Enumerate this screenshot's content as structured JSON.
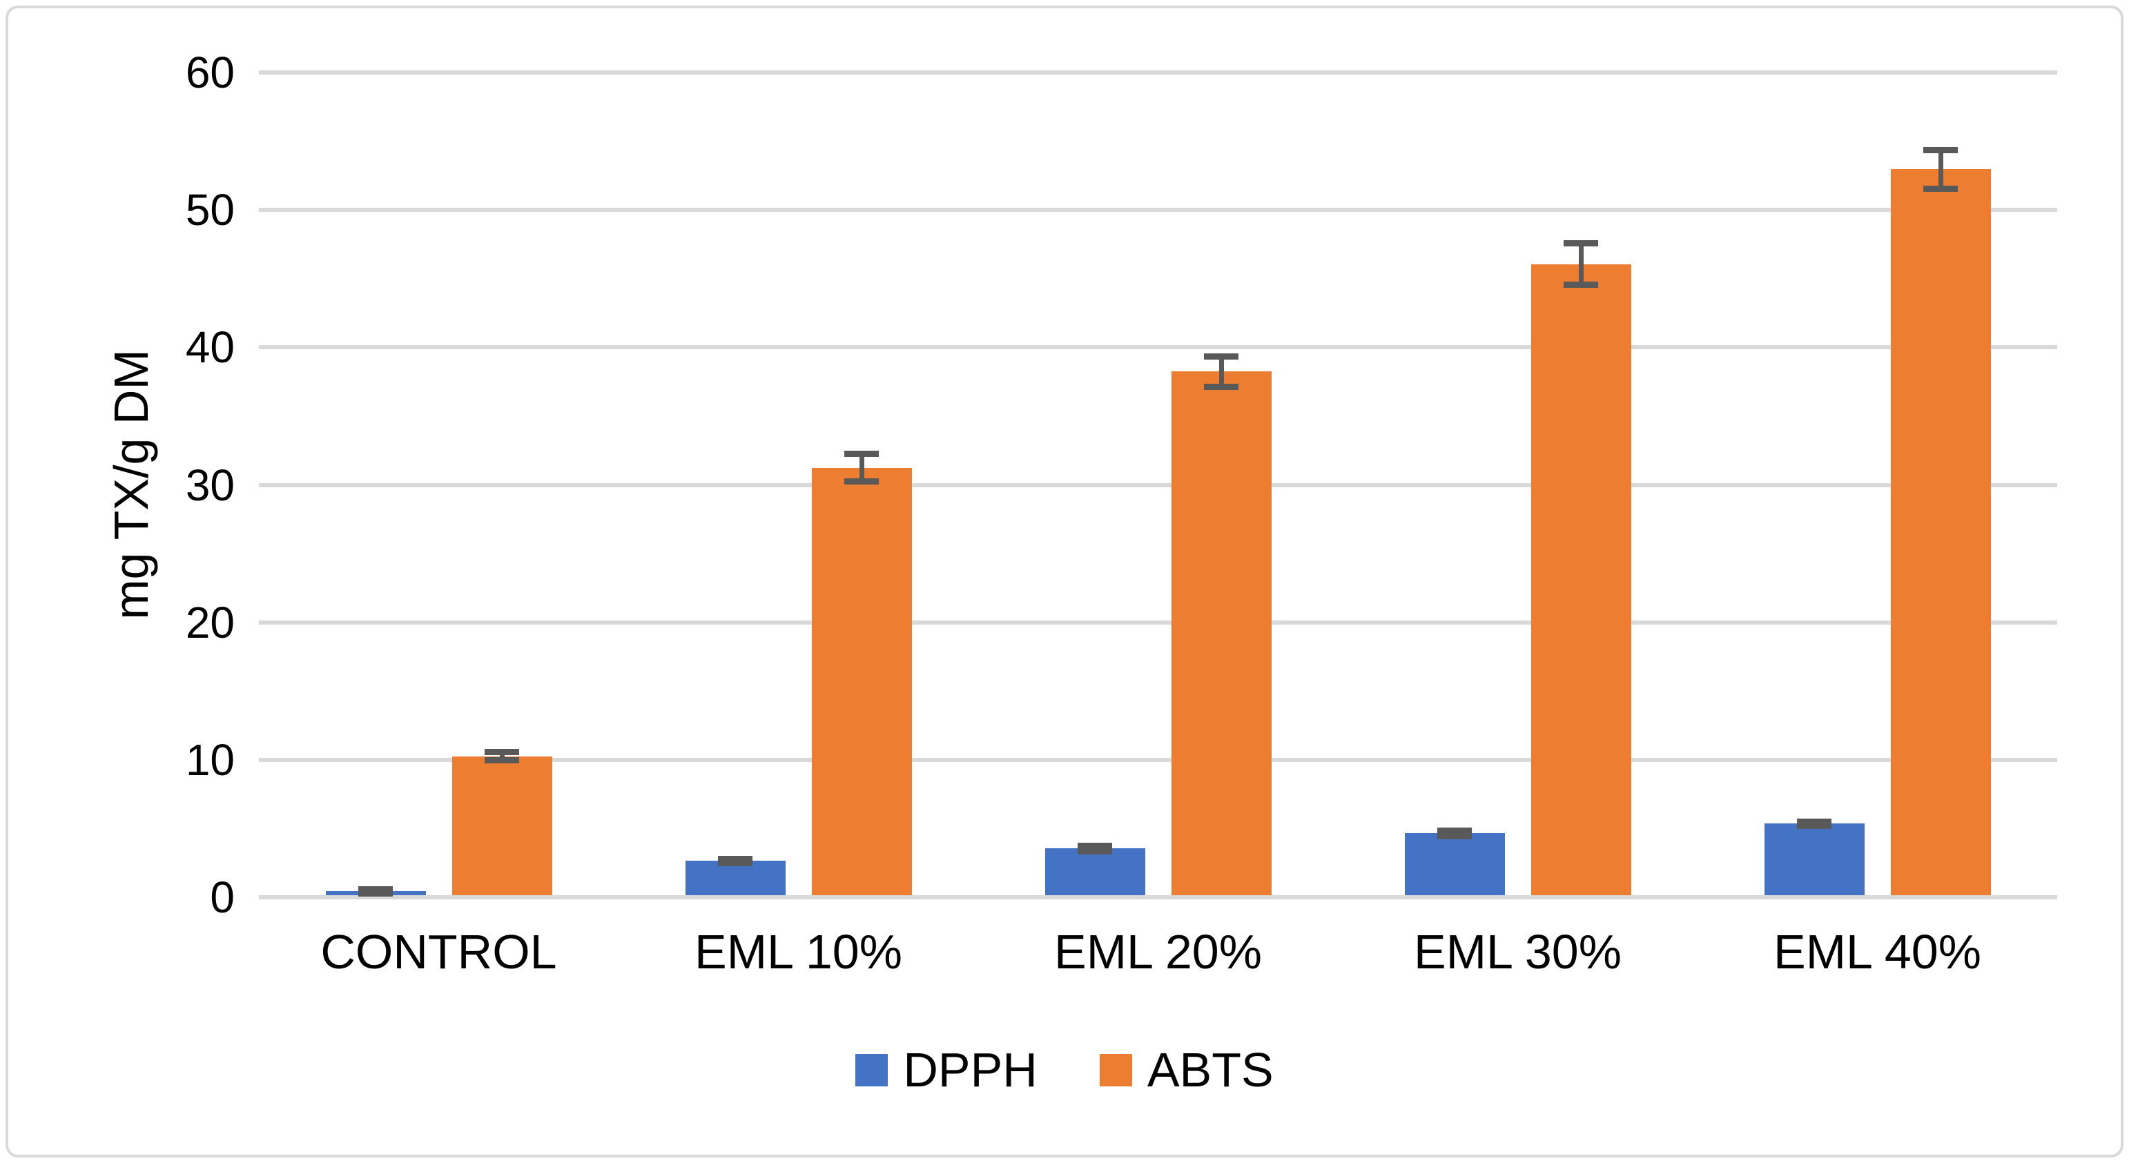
{
  "chart_data": {
    "type": "bar",
    "title": "",
    "xlabel": "",
    "ylabel": "mg TX/g DM",
    "ylim": [
      0,
      60
    ],
    "ytick_step": 10,
    "ytick_labels": [
      "0",
      "10",
      "20",
      "30",
      "40",
      "50",
      "60"
    ],
    "grid": true,
    "legend_position": "bottom",
    "categories": [
      "CONTROL",
      "EML 10%",
      "EML 20%",
      "EML 30%",
      "EML 40%"
    ],
    "series": [
      {
        "name": "DPPH",
        "color": "#4472C4",
        "values": [
          0.3,
          2.5,
          3.4,
          4.5,
          5.2
        ],
        "errors": [
          0.15,
          0.15,
          0.2,
          0.2,
          0.15
        ]
      },
      {
        "name": "ABTS",
        "color": "#ED7D31",
        "values": [
          10.1,
          31.1,
          38.1,
          45.9,
          52.8
        ],
        "errors": [
          0.3,
          1.0,
          1.1,
          1.5,
          1.4
        ]
      }
    ],
    "colors": {
      "gridline": "#D9D9D9",
      "frame_border": "#D9D9D9",
      "error_bar": "#595959",
      "axis_text": "#000000",
      "background": "#FFFFFF"
    }
  },
  "legend": {
    "items": [
      {
        "label": "DPPH",
        "color": "#4472C4"
      },
      {
        "label": "ABTS",
        "color": "#ED7D31"
      }
    ]
  }
}
